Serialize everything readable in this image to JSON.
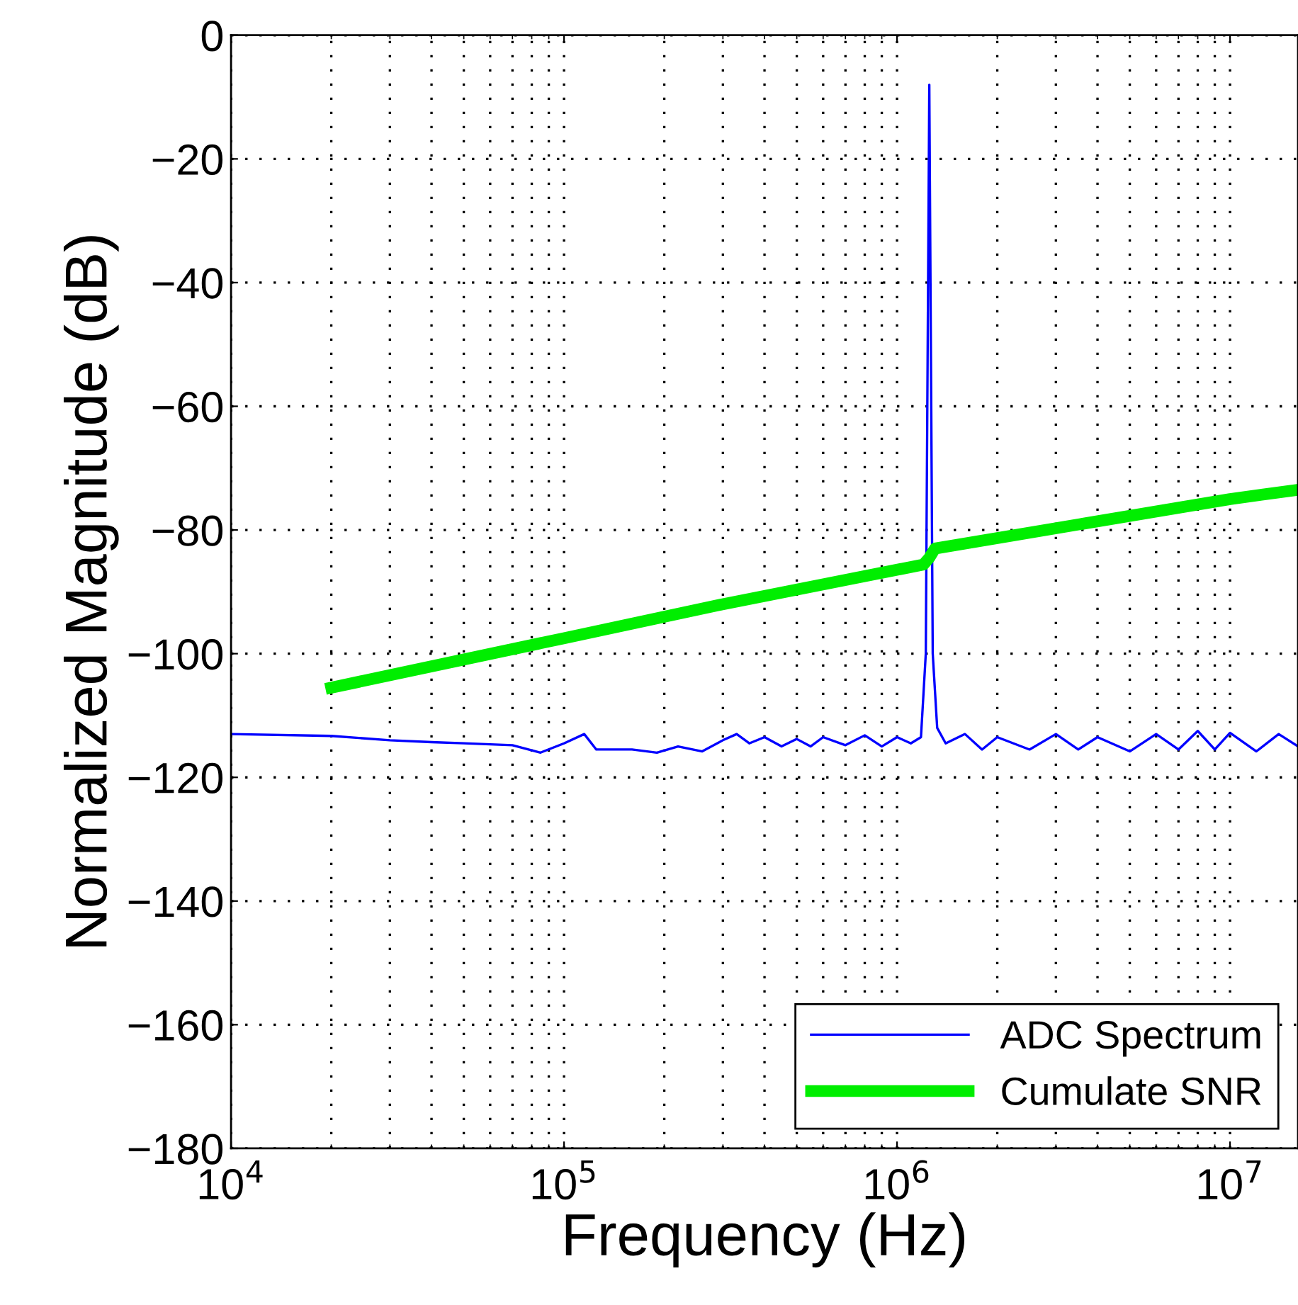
{
  "chart_data": {
    "type": "line",
    "xlabel": "Frequency (Hz)",
    "ylabel": "Normalized Magnitude (dB)",
    "log": "x",
    "xlim": [
      10000,
      16000000
    ],
    "ylim": [
      -180,
      0
    ],
    "xticks": [
      {
        "value": 10000,
        "label": "10$^{4}$"
      },
      {
        "value": 100000,
        "label": "10$^{5}$"
      },
      {
        "value": 1000000,
        "label": "10$^{6}$"
      },
      {
        "value": 10000000,
        "label": "10$^{7}$"
      }
    ],
    "yticks": [
      -180,
      -160,
      -140,
      -120,
      -100,
      -80,
      -60,
      -40,
      -20,
      0
    ],
    "grid": true,
    "legend": "bottom right",
    "line_style": "solid",
    "marker": "none",
    "series": [
      {
        "name": "ADC Spectrum",
        "color": "#0000ff",
        "x": [
          10000,
          20000,
          30000,
          40000,
          50000,
          70000,
          85000,
          100000,
          115000,
          125000,
          160000,
          190000,
          220000,
          260000,
          300000,
          330000,
          360000,
          400000,
          450000,
          500000,
          550000,
          600000,
          700000,
          800000,
          900000,
          1000000,
          1100000,
          1180000,
          1220000,
          1250000,
          1280000,
          1320000,
          1400000,
          1600000,
          1800000,
          2000000,
          2500000,
          3000000,
          3500000,
          4000000,
          5000000,
          6000000,
          7000000,
          8000000,
          9000000,
          10000000,
          12000000,
          14000000,
          16000000
        ],
        "values": [
          -113,
          -113.3,
          -114,
          -114.3,
          -114.5,
          -114.8,
          -116,
          -114.5,
          -113,
          -115.5,
          -115.5,
          -116,
          -115,
          -115.8,
          -114,
          -113,
          -114.5,
          -113.5,
          -115,
          -113.8,
          -115,
          -113.5,
          -114.8,
          -113.2,
          -115,
          -113.5,
          -114.5,
          -113.5,
          -100,
          -8,
          -100,
          -112,
          -114.5,
          -113,
          -115.5,
          -113.5,
          -115.5,
          -113,
          -115.5,
          -113.5,
          -115.8,
          -113,
          -115.5,
          -112.5,
          -115.5,
          -112.8,
          -115.8,
          -113,
          -115
        ]
      },
      {
        "name": "Cumulate SNR",
        "color": "#00ee00",
        "x": [
          20000,
          100000,
          300000,
          1200000,
          1250000,
          1300000,
          10000000,
          16000000
        ],
        "values": [
          -105.5,
          -97.5,
          -92,
          -85.6,
          -84.5,
          -83,
          -75,
          -73.5
        ]
      }
    ]
  }
}
